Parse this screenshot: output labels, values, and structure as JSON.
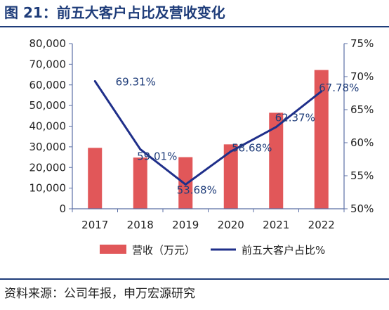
{
  "header": {
    "title": "图 21：前五大客户占比及营收变化"
  },
  "footer": {
    "source": "资料来源：公司年报，申万宏源研究"
  },
  "colors": {
    "bar": "#e15759",
    "line": "#1f2f8a",
    "axis": "#5b6fa5",
    "text": "#222222",
    "label": "#1f3d7a"
  },
  "chart_data": {
    "type": "bar",
    "categories": [
      "2017",
      "2018",
      "2019",
      "2020",
      "2021",
      "2022"
    ],
    "series": [
      {
        "name": "营收（万元）",
        "type": "bar",
        "axis": "left",
        "values": [
          29500,
          24800,
          25000,
          31200,
          46500,
          67200
        ]
      },
      {
        "name": "前五大客户占比%",
        "type": "line",
        "axis": "right",
        "values": [
          69.31,
          59.01,
          53.68,
          58.68,
          62.37,
          67.78
        ],
        "labels": [
          "69.31%",
          "59.01%",
          "53.68%",
          "58.68%",
          "62.37%",
          "67.78%"
        ]
      }
    ],
    "y_left": {
      "min": 0,
      "max": 80000,
      "step": 10000,
      "ticks": [
        "0",
        "10,000",
        "20,000",
        "30,000",
        "40,000",
        "50,000",
        "60,000",
        "70,000",
        "80,000"
      ]
    },
    "y_right": {
      "min": 50,
      "max": 75,
      "step": 5,
      "ticks": [
        "50%",
        "55%",
        "60%",
        "65%",
        "70%",
        "75%"
      ]
    },
    "legend_position": "bottom",
    "grid": false
  }
}
